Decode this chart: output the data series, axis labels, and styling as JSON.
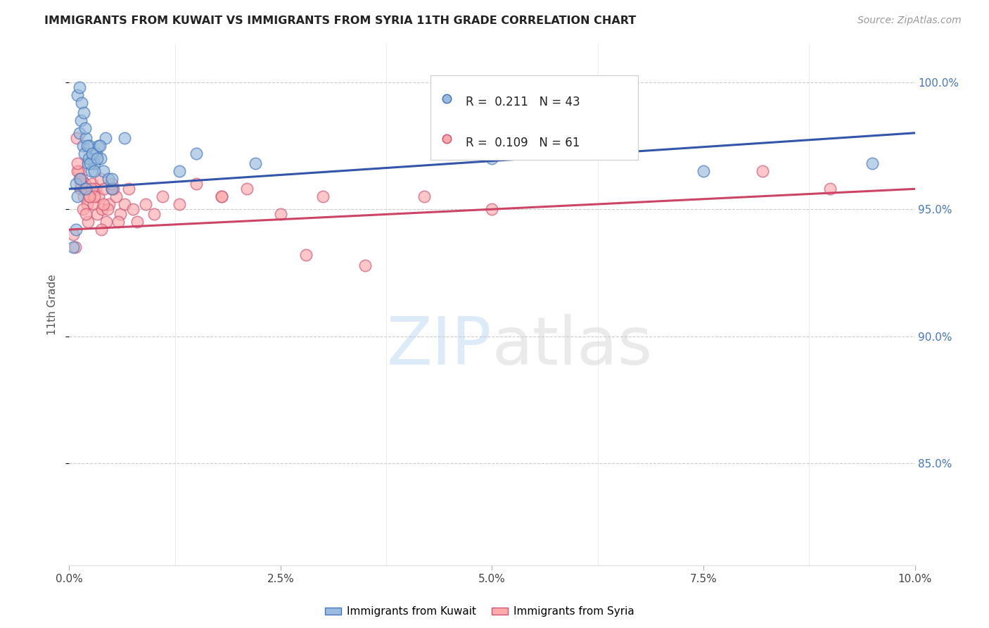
{
  "title": "IMMIGRANTS FROM KUWAIT VS IMMIGRANTS FROM SYRIA 11TH GRADE CORRELATION CHART",
  "source": "Source: ZipAtlas.com",
  "ylabel": "11th Grade",
  "right_ytick_values": [
    85.0,
    90.0,
    95.0,
    100.0
  ],
  "xlim": [
    0.0,
    10.0
  ],
  "ylim": [
    81.0,
    101.5
  ],
  "legend_blue_r": "0.211",
  "legend_blue_n": "43",
  "legend_pink_r": "0.109",
  "legend_pink_n": "61",
  "legend_label_blue": "Immigrants from Kuwait",
  "legend_label_pink": "Immigrants from Syria",
  "blue_dot_color": "#99BBDD",
  "blue_edge_color": "#4477BB",
  "pink_dot_color": "#FFAAAA",
  "pink_edge_color": "#CC5577",
  "trendline_blue_color": "#3355AA",
  "trendline_pink_color": "#CC4466",
  "right_axis_color": "#4477BB",
  "grid_color": "#CCCCCC",
  "blue_x": [
    0.05,
    0.08,
    0.1,
    0.12,
    0.14,
    0.16,
    0.18,
    0.2,
    0.22,
    0.24,
    0.26,
    0.28,
    0.3,
    0.32,
    0.35,
    0.37,
    0.4,
    0.43,
    0.46,
    0.5,
    0.12,
    0.15,
    0.17,
    0.19,
    0.21,
    0.23,
    0.25,
    0.27,
    0.3,
    0.33,
    0.36,
    0.5,
    0.65,
    1.3,
    1.5,
    2.2,
    5.0,
    7.5,
    9.5,
    0.08,
    0.1,
    0.13,
    0.2
  ],
  "blue_y": [
    93.5,
    94.2,
    99.5,
    98.0,
    98.5,
    97.5,
    97.2,
    97.8,
    96.8,
    97.5,
    96.5,
    97.0,
    96.8,
    97.2,
    97.5,
    97.0,
    96.5,
    97.8,
    96.2,
    95.8,
    99.8,
    99.2,
    98.8,
    98.2,
    97.5,
    97.0,
    96.8,
    97.2,
    96.5,
    97.0,
    97.5,
    96.2,
    97.8,
    96.5,
    97.2,
    96.8,
    97.0,
    96.5,
    96.8,
    96.0,
    95.5,
    96.2,
    95.8
  ],
  "pink_x": [
    0.05,
    0.07,
    0.09,
    0.11,
    0.13,
    0.15,
    0.17,
    0.19,
    0.21,
    0.23,
    0.25,
    0.27,
    0.29,
    0.31,
    0.33,
    0.35,
    0.37,
    0.39,
    0.41,
    0.44,
    0.47,
    0.5,
    0.55,
    0.6,
    0.65,
    0.7,
    0.75,
    0.8,
    0.9,
    1.0,
    1.1,
    1.3,
    1.5,
    1.8,
    2.1,
    2.5,
    3.0,
    3.5,
    4.2,
    5.0,
    0.1,
    0.14,
    0.18,
    0.22,
    0.26,
    0.3,
    0.38,
    0.45,
    0.52,
    0.58,
    0.1,
    0.12,
    0.16,
    0.2,
    0.24,
    0.4,
    0.5,
    1.8,
    9.0,
    2.8,
    8.2
  ],
  "pink_y": [
    94.0,
    93.5,
    97.8,
    96.5,
    95.8,
    96.2,
    95.5,
    96.0,
    95.2,
    95.8,
    95.5,
    96.0,
    95.2,
    95.8,
    94.8,
    95.5,
    96.2,
    95.0,
    95.8,
    94.5,
    95.2,
    95.8,
    95.5,
    94.8,
    95.2,
    95.8,
    95.0,
    94.5,
    95.2,
    94.8,
    95.5,
    95.2,
    96.0,
    95.5,
    95.8,
    94.8,
    95.5,
    92.8,
    95.5,
    95.0,
    96.5,
    96.0,
    95.8,
    94.5,
    95.8,
    95.5,
    94.2,
    95.0,
    95.8,
    94.5,
    96.8,
    96.2,
    95.0,
    94.8,
    95.5,
    95.2,
    96.0,
    95.5,
    95.8,
    93.2,
    96.5
  ],
  "trendline_blue_y0": 95.8,
  "trendline_blue_y1": 98.0,
  "trendline_pink_y0": 94.2,
  "trendline_pink_y1": 95.8
}
